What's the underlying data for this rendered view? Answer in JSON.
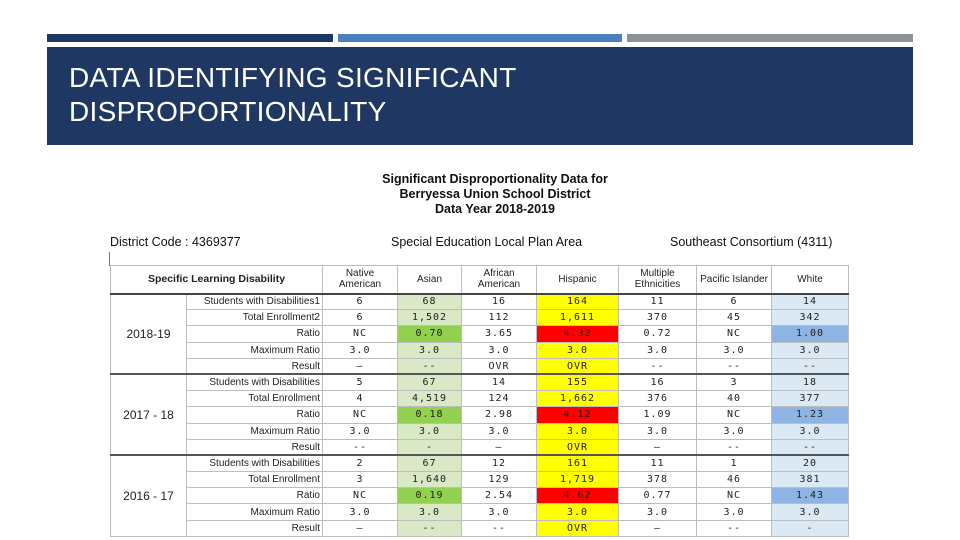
{
  "slide": {
    "title_line1": "DATA IDENTIFYING SIGNIFICANT",
    "title_line2": "DISPROPORTIONALITY"
  },
  "report": {
    "title_line1": "Significant Disproportionality Data for",
    "title_line2": "Berryessa Union School District",
    "title_line3": "Data Year 2018-2019",
    "district_code": "District Code : 4369377",
    "selpa": "Special Education Local Plan Area",
    "consortium": "Southeast Consortium (4311)"
  },
  "table": {
    "corner_label": "Specific Learning Disability",
    "columns": [
      "Native American",
      "Asian",
      "African American",
      "Hispanic",
      "Multiple Ethnicities",
      "Pacific Islander",
      "White"
    ],
    "groups": [
      {
        "year": "2018-19",
        "rows": [
          {
            "label": "Students with Disabilities1",
            "values": [
              "6",
              "68",
              "16",
              "164",
              "11",
              "6",
              "14"
            ]
          },
          {
            "label": "Total Enrollment2",
            "values": [
              "6",
              "1,502",
              "112",
              "1,611",
              "370",
              "45",
              "342"
            ]
          },
          {
            "label": "Ratio",
            "values": [
              "NC",
              "0.70",
              "3.65",
              "4.32",
              "0.72",
              "NC",
              "1.00"
            ]
          },
          {
            "label": "Maximum Ratio",
            "values": [
              "3.0",
              "3.0",
              "3.0",
              "3.0",
              "3.0",
              "3.0",
              "3.0"
            ]
          },
          {
            "label": "Result",
            "values": [
              "–",
              "--",
              "OVR",
              "OVR",
              "--",
              "--",
              "--"
            ]
          }
        ]
      },
      {
        "year": "2017 - 18",
        "rows": [
          {
            "label": "Students with Disabilities",
            "values": [
              "5",
              "67",
              "14",
              "155",
              "16",
              "3",
              "18"
            ]
          },
          {
            "label": "Total Enrollment",
            "values": [
              "4",
              "4,519",
              "124",
              "1,662",
              "376",
              "40",
              "377"
            ]
          },
          {
            "label": "Ratio",
            "values": [
              "NC",
              "0.18",
              "2.98",
              "4.12",
              "1.09",
              "NC",
              "1.23"
            ]
          },
          {
            "label": "Maximum Ratio",
            "values": [
              "3.0",
              "3.0",
              "3.0",
              "3.0",
              "3.0",
              "3.0",
              "3.0"
            ]
          },
          {
            "label": "Result",
            "values": [
              "--",
              "-",
              "–",
              "OVR",
              "–",
              "--",
              "--"
            ]
          }
        ]
      },
      {
        "year": "2016 - 17",
        "rows": [
          {
            "label": "Students with Disabilities",
            "values": [
              "2",
              "67",
              "12",
              "161",
              "11",
              "1",
              "20"
            ]
          },
          {
            "label": "Total Enrollment",
            "values": [
              "3",
              "1,640",
              "129",
              "1,719",
              "378",
              "46",
              "381"
            ]
          },
          {
            "label": "Ratio",
            "values": [
              "NC",
              "0.19",
              "2.54",
              "4.62",
              "0.77",
              "NC",
              "1.43"
            ]
          },
          {
            "label": "Maximum Ratio",
            "values": [
              "3.0",
              "3.0",
              "3.0",
              "3.0",
              "3.0",
              "3.0",
              "3.0"
            ]
          },
          {
            "label": "Result",
            "values": [
              "–",
              "--",
              "--",
              "OVR",
              "–",
              "--",
              "-"
            ]
          }
        ]
      }
    ],
    "colors": {
      "asian_bg": "#d9e8c5",
      "asian_ratio_bg": "#92d050",
      "hispanic_bg": "#ffff00",
      "hispanic_ratio_bg": "#ff0000",
      "white_bg": "#dbe9f5",
      "white_ratio_bg": "#8db4e2"
    }
  }
}
